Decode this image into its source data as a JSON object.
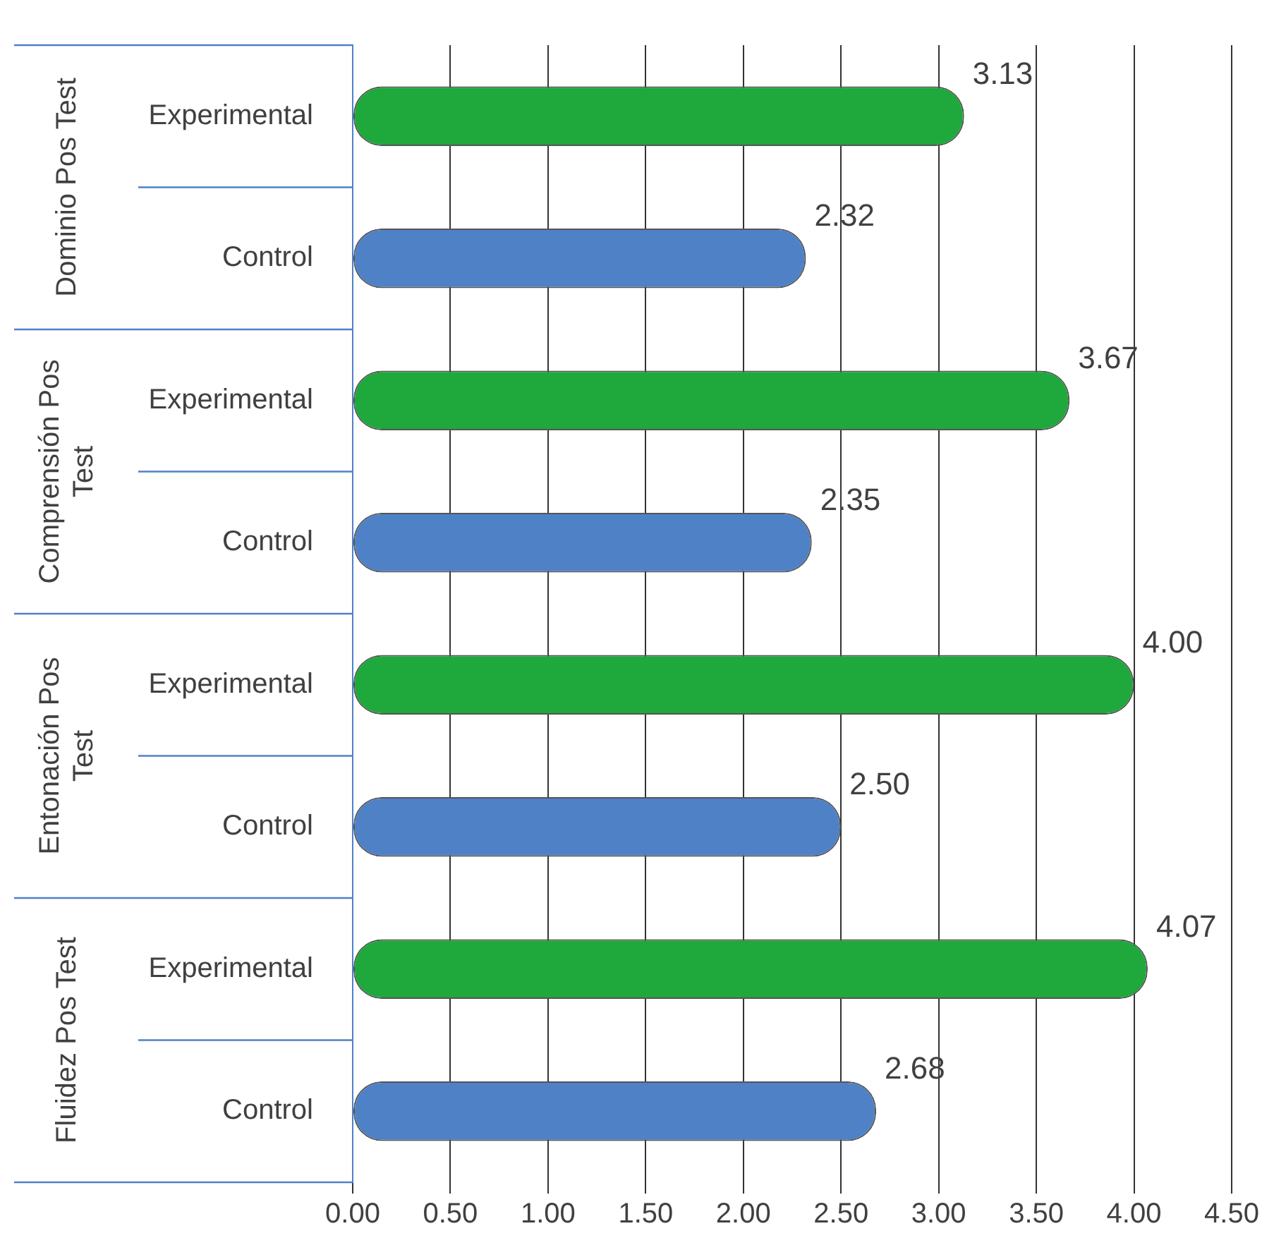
{
  "chart_data": {
    "type": "bar",
    "orientation": "horizontal",
    "categories": [
      "Experimental",
      "Control",
      "Experimental",
      "Control",
      "Experimental",
      "Control",
      "Experimental",
      "Control"
    ],
    "values": [
      3.13,
      2.32,
      3.67,
      2.35,
      4.0,
      2.5,
      4.07,
      2.68
    ],
    "value_labels": [
      "3.13",
      "2.32",
      "3.67",
      "2.35",
      "4.00",
      "2.50",
      "4.07",
      "2.68"
    ],
    "colors": [
      "#1fa83c",
      "#4f81c7",
      "#1fa83c",
      "#4f81c7",
      "#1fa83c",
      "#4f81c7",
      "#1fa83c",
      "#4f81c7"
    ],
    "xlim": [
      0,
      4.5
    ],
    "xticks": [
      {
        "value": 0,
        "label": "0.00"
      },
      {
        "value": 0.5,
        "label": "0.50"
      },
      {
        "value": 1,
        "label": "1.00"
      },
      {
        "value": 1.5,
        "label": "1.50"
      },
      {
        "value": 2,
        "label": "2.00"
      },
      {
        "value": 2.5,
        "label": "2.50"
      },
      {
        "value": 3,
        "label": "3.00"
      },
      {
        "value": 3.5,
        "label": "3.50"
      },
      {
        "value": 4,
        "label": "4.00"
      },
      {
        "value": 4.5,
        "label": "4.50"
      }
    ],
    "grid": "x",
    "annotations": [
      "Dominio Pos Test",
      "Comprensión Pos Test",
      "Entonación Pos Test",
      "Fluidez Pos Test"
    ]
  }
}
